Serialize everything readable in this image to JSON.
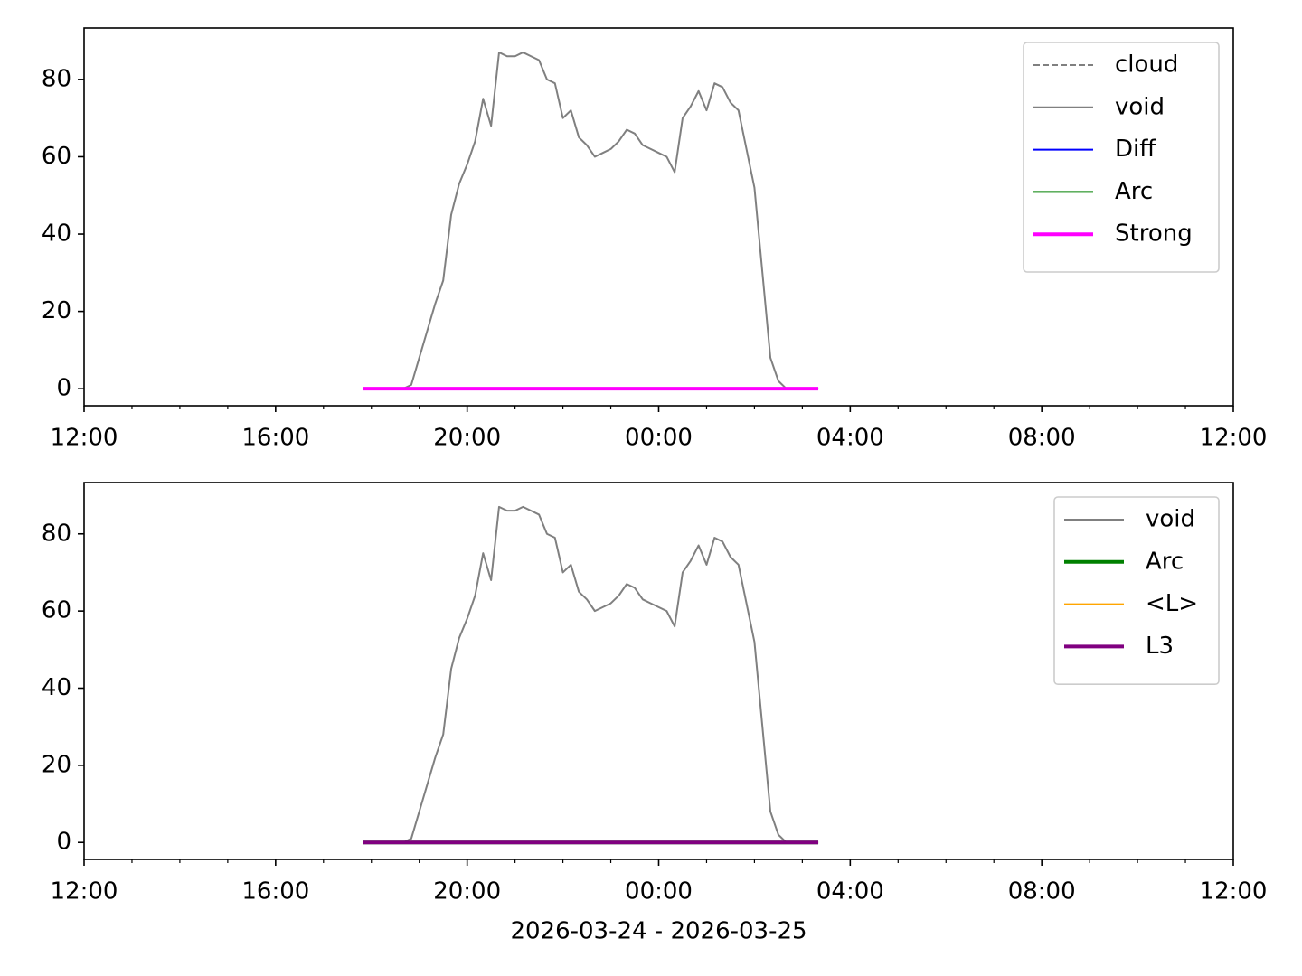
{
  "chart_data": [
    {
      "type": "line",
      "xlim": [
        "2026-03-24 12:00",
        "2026-03-25 12:00"
      ],
      "xticks": [
        {
          "value": "2026-03-24 12:00",
          "label": "12:00"
        },
        {
          "value": "2026-03-24 16:00",
          "label": "16:00"
        },
        {
          "value": "2026-03-24 20:00",
          "label": "20:00"
        },
        {
          "value": "2026-03-25 00:00",
          "label": "00:00"
        },
        {
          "value": "2026-03-25 04:00",
          "label": "04:00"
        },
        {
          "value": "2026-03-25 08:00",
          "label": "08:00"
        },
        {
          "value": "2026-03-25 12:00",
          "label": "12:00"
        }
      ],
      "ylim": [
        -4.4,
        93.3
      ],
      "yticks": [
        0,
        20,
        40,
        60,
        80
      ],
      "legend": "upper right",
      "x": [
        "2026-03-24 17:50",
        "2026-03-24 18:00",
        "2026-03-24 18:10",
        "2026-03-24 18:20",
        "2026-03-24 18:30",
        "2026-03-24 18:40",
        "2026-03-24 18:50",
        "2026-03-24 19:00",
        "2026-03-24 19:10",
        "2026-03-24 19:20",
        "2026-03-24 19:30",
        "2026-03-24 19:40",
        "2026-03-24 19:50",
        "2026-03-24 20:00",
        "2026-03-24 20:10",
        "2026-03-24 20:20",
        "2026-03-24 20:30",
        "2026-03-24 20:40",
        "2026-03-24 20:50",
        "2026-03-24 21:00",
        "2026-03-24 21:10",
        "2026-03-24 21:20",
        "2026-03-24 21:30",
        "2026-03-24 21:40",
        "2026-03-24 21:50",
        "2026-03-24 22:00",
        "2026-03-24 22:10",
        "2026-03-24 22:20",
        "2026-03-24 22:30",
        "2026-03-24 22:40",
        "2026-03-24 22:50",
        "2026-03-24 23:00",
        "2026-03-24 23:10",
        "2026-03-24 23:20",
        "2026-03-24 23:30",
        "2026-03-24 23:40",
        "2026-03-24 23:50",
        "2026-03-25 00:00",
        "2026-03-25 00:10",
        "2026-03-25 00:20",
        "2026-03-25 00:30",
        "2026-03-25 00:40",
        "2026-03-25 00:50",
        "2026-03-25 01:00",
        "2026-03-25 01:10",
        "2026-03-25 01:20",
        "2026-03-25 01:30",
        "2026-03-25 01:40",
        "2026-03-25 01:50",
        "2026-03-25 02:00",
        "2026-03-25 02:10",
        "2026-03-25 02:20",
        "2026-03-25 02:30",
        "2026-03-25 02:40",
        "2026-03-25 02:50",
        "2026-03-25 03:00",
        "2026-03-25 03:10",
        "2026-03-25 03:20"
      ],
      "series": [
        {
          "name": "cloud",
          "color": "#808080",
          "width": 2,
          "dash": "dashed",
          "values": [
            0,
            0,
            0,
            0,
            0,
            0,
            0,
            0,
            0,
            0,
            0,
            0,
            0,
            0,
            0,
            0,
            0,
            0,
            0,
            0,
            0,
            0,
            0,
            0,
            0,
            0,
            0,
            0,
            0,
            0,
            0,
            0,
            0,
            0,
            0,
            0,
            0,
            0,
            0,
            0,
            0,
            0,
            0,
            0,
            0,
            0,
            0,
            0,
            0,
            0,
            0,
            0,
            0,
            0,
            0,
            0,
            0,
            0
          ]
        },
        {
          "name": "void",
          "color": "#808080",
          "width": 2,
          "values": [
            0,
            0,
            0,
            0,
            0,
            0,
            1,
            8,
            15,
            22,
            28,
            45,
            53,
            58,
            64,
            75,
            68,
            87,
            86,
            86,
            87,
            86,
            85,
            80,
            79,
            70,
            72,
            65,
            63,
            60,
            61,
            62,
            64,
            67,
            66,
            63,
            62,
            61,
            60,
            56,
            70,
            73,
            77,
            72,
            79,
            78,
            74,
            72,
            62,
            52,
            30,
            8,
            2,
            0,
            0,
            0,
            0,
            0
          ]
        },
        {
          "name": "Diff",
          "color": "#0000ff",
          "width": 2,
          "values": [
            0,
            0,
            0,
            0,
            0,
            0,
            0,
            0,
            0,
            0,
            0,
            0,
            0,
            0,
            0,
            0,
            0,
            0,
            0,
            0,
            0,
            0,
            0,
            0,
            0,
            0,
            0,
            0,
            0,
            0,
            0,
            0,
            0,
            0,
            0,
            0,
            0,
            0,
            0,
            0,
            0,
            0,
            0,
            0,
            0,
            0,
            0,
            0,
            0,
            0,
            0,
            0,
            0,
            0,
            0,
            0,
            0,
            0
          ]
        },
        {
          "name": "Arc",
          "color": "#008000",
          "width": 2,
          "values": [
            0,
            0,
            0,
            0,
            0,
            0,
            0,
            0,
            0,
            0,
            0,
            0,
            0,
            0,
            0,
            0,
            0,
            0,
            0,
            0,
            0,
            0,
            0,
            0,
            0,
            0,
            0,
            0,
            0,
            0,
            0,
            0,
            0,
            0,
            0,
            0,
            0,
            0,
            0,
            0,
            0,
            0,
            0,
            0,
            0,
            0,
            0,
            0,
            0,
            0,
            0,
            0,
            0,
            0,
            0,
            0,
            0,
            0
          ]
        },
        {
          "name": "Strong",
          "color": "#ff00ff",
          "width": 4,
          "values": [
            0,
            0,
            0,
            0,
            0,
            0,
            0,
            0,
            0,
            0,
            0,
            0,
            0,
            0,
            0,
            0,
            0,
            0,
            0,
            0,
            0,
            0,
            0,
            0,
            0,
            0,
            0,
            0,
            0,
            0,
            0,
            0,
            0,
            0,
            0,
            0,
            0,
            0,
            0,
            0,
            0,
            0,
            0,
            0,
            0,
            0,
            0,
            0,
            0,
            0,
            0,
            0,
            0,
            0,
            0,
            0,
            0,
            0
          ]
        }
      ]
    },
    {
      "type": "line",
      "xlabel": "2026-03-24 - 2026-03-25",
      "xlim": [
        "2026-03-24 12:00",
        "2026-03-25 12:00"
      ],
      "xticks": [
        {
          "value": "2026-03-24 12:00",
          "label": "12:00"
        },
        {
          "value": "2026-03-24 16:00",
          "label": "16:00"
        },
        {
          "value": "2026-03-24 20:00",
          "label": "20:00"
        },
        {
          "value": "2026-03-25 00:00",
          "label": "00:00"
        },
        {
          "value": "2026-03-25 04:00",
          "label": "04:00"
        },
        {
          "value": "2026-03-25 08:00",
          "label": "08:00"
        },
        {
          "value": "2026-03-25 12:00",
          "label": "12:00"
        }
      ],
      "ylim": [
        -4.4,
        93.3
      ],
      "yticks": [
        0,
        20,
        40,
        60,
        80
      ],
      "legend": "upper right",
      "x": [
        "2026-03-24 17:50",
        "2026-03-24 18:00",
        "2026-03-24 18:10",
        "2026-03-24 18:20",
        "2026-03-24 18:30",
        "2026-03-24 18:40",
        "2026-03-24 18:50",
        "2026-03-24 19:00",
        "2026-03-24 19:10",
        "2026-03-24 19:20",
        "2026-03-24 19:30",
        "2026-03-24 19:40",
        "2026-03-24 19:50",
        "2026-03-24 20:00",
        "2026-03-24 20:10",
        "2026-03-24 20:20",
        "2026-03-24 20:30",
        "2026-03-24 20:40",
        "2026-03-24 20:50",
        "2026-03-24 21:00",
        "2026-03-24 21:10",
        "2026-03-24 21:20",
        "2026-03-24 21:30",
        "2026-03-24 21:40",
        "2026-03-24 21:50",
        "2026-03-24 22:00",
        "2026-03-24 22:10",
        "2026-03-24 22:20",
        "2026-03-24 22:30",
        "2026-03-24 22:40",
        "2026-03-24 22:50",
        "2026-03-24 23:00",
        "2026-03-24 23:10",
        "2026-03-24 23:20",
        "2026-03-24 23:30",
        "2026-03-24 23:40",
        "2026-03-24 23:50",
        "2026-03-25 00:00",
        "2026-03-25 00:10",
        "2026-03-25 00:20",
        "2026-03-25 00:30",
        "2026-03-25 00:40",
        "2026-03-25 00:50",
        "2026-03-25 01:00",
        "2026-03-25 01:10",
        "2026-03-25 01:20",
        "2026-03-25 01:30",
        "2026-03-25 01:40",
        "2026-03-25 01:50",
        "2026-03-25 02:00",
        "2026-03-25 02:10",
        "2026-03-25 02:20",
        "2026-03-25 02:30",
        "2026-03-25 02:40",
        "2026-03-25 02:50",
        "2026-03-25 03:00",
        "2026-03-25 03:10",
        "2026-03-25 03:20"
      ],
      "series": [
        {
          "name": "void",
          "color": "#808080",
          "width": 2,
          "values": [
            0,
            0,
            0,
            0,
            0,
            0,
            1,
            8,
            15,
            22,
            28,
            45,
            53,
            58,
            64,
            75,
            68,
            87,
            86,
            86,
            87,
            86,
            85,
            80,
            79,
            70,
            72,
            65,
            63,
            60,
            61,
            62,
            64,
            67,
            66,
            63,
            62,
            61,
            60,
            56,
            70,
            73,
            77,
            72,
            79,
            78,
            74,
            72,
            62,
            52,
            30,
            8,
            2,
            0,
            0,
            0,
            0,
            0
          ]
        },
        {
          "name": "Arc",
          "color": "#008000",
          "width": 4,
          "values": [
            0,
            0,
            0,
            0,
            0,
            0,
            0,
            0,
            0,
            0,
            0,
            0,
            0,
            0,
            0,
            0,
            0,
            0,
            0,
            0,
            0,
            0,
            0,
            0,
            0,
            0,
            0,
            0,
            0,
            0,
            0,
            0,
            0,
            0,
            0,
            0,
            0,
            0,
            0,
            0,
            0,
            0,
            0,
            0,
            0,
            0,
            0,
            0,
            0,
            0,
            0,
            0,
            0,
            0,
            0,
            0,
            0,
            0
          ]
        },
        {
          "name": "<L>",
          "color": "#ffa500",
          "width": 2,
          "values": [
            0,
            0,
            0,
            0,
            0,
            0,
            0,
            0,
            0,
            0,
            0,
            0,
            0,
            0,
            0,
            0,
            0,
            0,
            0,
            0,
            0,
            0,
            0,
            0,
            0,
            0,
            0,
            0,
            0,
            0,
            0,
            0,
            0,
            0,
            0,
            0,
            0,
            0,
            0,
            0,
            0,
            0,
            0,
            0,
            0,
            0,
            0,
            0,
            0,
            0,
            0,
            0,
            0,
            0,
            0,
            0,
            0,
            0
          ]
        },
        {
          "name": "L3",
          "color": "#800080",
          "width": 4,
          "values": [
            0,
            0,
            0,
            0,
            0,
            0,
            0,
            0,
            0,
            0,
            0,
            0,
            0,
            0,
            0,
            0,
            0,
            0,
            0,
            0,
            0,
            0,
            0,
            0,
            0,
            0,
            0,
            0,
            0,
            0,
            0,
            0,
            0,
            0,
            0,
            0,
            0,
            0,
            0,
            0,
            0,
            0,
            0,
            0,
            0,
            0,
            0,
            0,
            0,
            0,
            0,
            0,
            0,
            0,
            0,
            0,
            0,
            0
          ]
        }
      ]
    }
  ]
}
